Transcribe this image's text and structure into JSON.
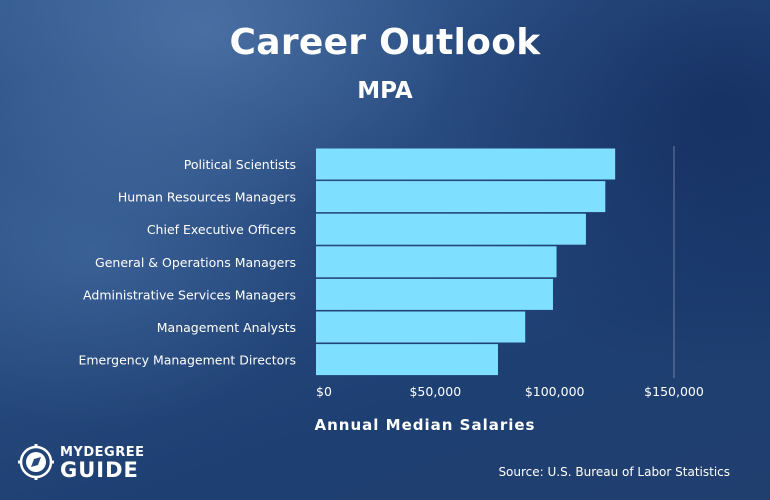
{
  "header": {
    "title": "Career Outlook",
    "subtitle": "MPA"
  },
  "chart_data": {
    "type": "bar",
    "orientation": "horizontal",
    "title": "Career Outlook",
    "subtitle": "MPA",
    "xlabel": "Annual Median Salaries",
    "ylabel": "",
    "categories": [
      "Political Scientists",
      "Human Resources Managers",
      "Chief Executive Officers",
      "General & Operations Managers",
      "Administrative Services Managers",
      "Management Analysts",
      "Emergency Management Directors"
    ],
    "values": [
      125350,
      121220,
      113100,
      100780,
      99290,
      87660,
      76250
    ],
    "xlim": [
      0,
      150000
    ],
    "xticks": [
      0,
      50000,
      100000,
      150000
    ],
    "xtick_labels": [
      "$0",
      "$50,000",
      "$100,000",
      "$150,000"
    ],
    "grid": "vertical at $150,000",
    "bar_color": "#7fdfff"
  },
  "footer": {
    "logo_line1": "MYDEGREE",
    "logo_line2": "GUIDE",
    "source": "Source: U.S. Bureau of Labor Statistics"
  },
  "colors": {
    "text": "#ffffff",
    "bar": "#7fdfff"
  }
}
